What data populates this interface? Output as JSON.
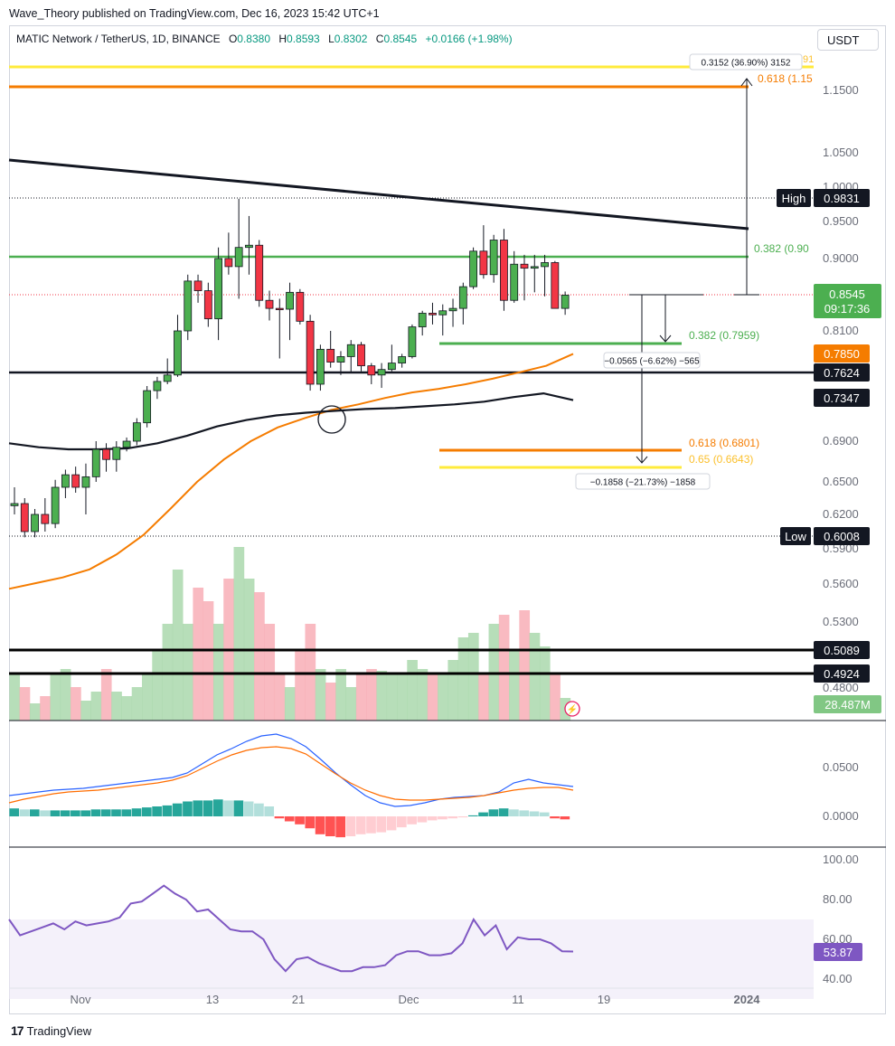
{
  "publisher": "Wave_Theory published on TradingView.com, Dec 16, 2023 15:42 UTC+1",
  "header": {
    "symbol": "MATIC Network / TetherUS, 1D, BINANCE",
    "o_key": "O",
    "o_val": "0.8380",
    "h_key": "H",
    "h_val": "0.8593",
    "l_key": "L",
    "l_val": "0.8302",
    "c_key": "C",
    "c_val": "0.8545",
    "change": "+0.0166 (+1.98%)",
    "currency": "USDT"
  },
  "footer": {
    "logo_mark": "17",
    "logo_text": "TradingView"
  },
  "colors": {
    "up": "#4caf50",
    "down": "#f23645",
    "green_line": "#4caf50",
    "orange": "#f57c00",
    "yellow": "#ffeb3b",
    "macd": "#2962ff",
    "signal": "#ff6d00",
    "rsi": "#7e57c2"
  },
  "chart_data": [
    {
      "type": "candlestick",
      "y_axis_ticks": [
        "1.1500",
        "1.0500",
        "1.0000",
        "0.9500",
        "0.9000",
        "0.8100",
        "0.6900",
        "0.6500",
        "0.6200",
        "0.5900",
        "0.5600",
        "0.5300",
        "0.4800"
      ],
      "x_axis_ticks": [
        "Nov",
        "13",
        "21",
        "Dec",
        "11",
        "19",
        "2024"
      ],
      "labels": {
        "high": "High",
        "high_value": "0.9831",
        "low": "Low",
        "low_value": "0.6008",
        "last_price": "0.8545",
        "countdown": "09:17:36",
        "ma50": "0.7850",
        "hline1": "0.7624",
        "ma200": "0.7347",
        "vline1": "0.5089",
        "vline2": "0.4924",
        "volume": "28.487M",
        "fib_618_up": "0.618 (1.15",
        "fib_top_cut": "91",
        "fib_382_up": "0.382 (0.90",
        "fib_382_down": "0.382 (0.7959)",
        "fib_618_down": "0.618 (0.6801)",
        "fib_65_down": "0.65 (0.6643)",
        "measure_up": "0.3152 (36.90%) 3152",
        "measure_small": "−0.0565 (−6.62%) −565",
        "measure_big": "−0.1858 (−21.73%) −1858"
      },
      "ohlc": [
        [
          0.628,
          0.645,
          0.62,
          0.63
        ],
        [
          0.63,
          0.635,
          0.6,
          0.605
        ],
        [
          0.605,
          0.625,
          0.6,
          0.62
        ],
        [
          0.62,
          0.635,
          0.605,
          0.612
        ],
        [
          0.612,
          0.652,
          0.608,
          0.645
        ],
        [
          0.645,
          0.662,
          0.635,
          0.657
        ],
        [
          0.657,
          0.665,
          0.64,
          0.645
        ],
        [
          0.645,
          0.668,
          0.62,
          0.655
        ],
        [
          0.655,
          0.69,
          0.65,
          0.682
        ],
        [
          0.682,
          0.688,
          0.66,
          0.672
        ],
        [
          0.672,
          0.69,
          0.66,
          0.684
        ],
        [
          0.684,
          0.694,
          0.68,
          0.69
        ],
        [
          0.69,
          0.715,
          0.686,
          0.71
        ],
        [
          0.71,
          0.75,
          0.705,
          0.745
        ],
        [
          0.745,
          0.76,
          0.736,
          0.755
        ],
        [
          0.755,
          0.78,
          0.752,
          0.762
        ],
        [
          0.762,
          0.83,
          0.76,
          0.81
        ],
        [
          0.81,
          0.88,
          0.8,
          0.872
        ],
        [
          0.872,
          0.88,
          0.845,
          0.86
        ],
        [
          0.86,
          0.87,
          0.815,
          0.825
        ],
        [
          0.825,
          0.915,
          0.8,
          0.9
        ],
        [
          0.9,
          0.935,
          0.88,
          0.89
        ],
        [
          0.89,
          0.983,
          0.85,
          0.915
        ],
        [
          0.915,
          0.958,
          0.88,
          0.918
        ],
        [
          0.918,
          0.925,
          0.84,
          0.848
        ],
        [
          0.848,
          0.86,
          0.823,
          0.838
        ],
        [
          0.838,
          0.85,
          0.78,
          0.837
        ],
        [
          0.837,
          0.87,
          0.8,
          0.858
        ],
        [
          0.858,
          0.862,
          0.818,
          0.822
        ],
        [
          0.822,
          0.83,
          0.745,
          0.752
        ],
        [
          0.752,
          0.795,
          0.745,
          0.79
        ],
        [
          0.79,
          0.81,
          0.77,
          0.776
        ],
        [
          0.776,
          0.788,
          0.762,
          0.782
        ],
        [
          0.782,
          0.8,
          0.765,
          0.795
        ],
        [
          0.795,
          0.798,
          0.766,
          0.772
        ],
        [
          0.772,
          0.775,
          0.752,
          0.762
        ],
        [
          0.762,
          0.775,
          0.748,
          0.768
        ],
        [
          0.768,
          0.795,
          0.766,
          0.775
        ],
        [
          0.775,
          0.785,
          0.77,
          0.782
        ],
        [
          0.782,
          0.818,
          0.78,
          0.815
        ],
        [
          0.815,
          0.835,
          0.805,
          0.832
        ],
        [
          0.832,
          0.845,
          0.818,
          0.83
        ],
        [
          0.83,
          0.843,
          0.805,
          0.835
        ],
        [
          0.835,
          0.85,
          0.815,
          0.838
        ],
        [
          0.838,
          0.87,
          0.818,
          0.865
        ],
        [
          0.865,
          0.915,
          0.862,
          0.91
        ],
        [
          0.91,
          0.945,
          0.875,
          0.88
        ],
        [
          0.88,
          0.932,
          0.87,
          0.925
        ],
        [
          0.925,
          0.94,
          0.835,
          0.848
        ],
        [
          0.848,
          0.91,
          0.845,
          0.893
        ],
        [
          0.893,
          0.905,
          0.848,
          0.888
        ],
        [
          0.888,
          0.905,
          0.858,
          0.89
        ],
        [
          0.89,
          0.905,
          0.853,
          0.895
        ],
        [
          0.895,
          0.897,
          0.84,
          0.838
        ],
        [
          0.838,
          0.859,
          0.83,
          0.8545
        ]
      ],
      "ma50": [
        0.555,
        0.56,
        0.565,
        0.572,
        0.585,
        0.602,
        0.625,
        0.65,
        0.672,
        0.69,
        0.705,
        0.715,
        0.724,
        0.73,
        0.737,
        0.743,
        0.747,
        0.752,
        0.758,
        0.765,
        0.772,
        0.785
      ],
      "ma200": [
        0.688,
        0.684,
        0.682,
        0.682,
        0.683,
        0.688,
        0.696,
        0.706,
        0.713,
        0.718,
        0.721,
        0.723,
        0.725,
        0.726,
        0.728,
        0.73,
        0.733,
        0.738,
        0.742,
        0.7347
      ]
    },
    {
      "type": "bar",
      "name": "MACD",
      "y_axis_ticks": [
        "0.0500",
        "0.0000"
      ],
      "histogram": [
        0.008,
        0.007,
        0.007,
        0.006,
        0.006,
        0.006,
        0.006,
        0.006,
        0.007,
        0.007,
        0.007,
        0.007,
        0.008,
        0.009,
        0.01,
        0.011,
        0.013,
        0.015,
        0.016,
        0.016,
        0.017,
        0.016,
        0.016,
        0.015,
        0.013,
        0.01,
        -0.002,
        -0.005,
        -0.008,
        -0.012,
        -0.018,
        -0.02,
        -0.021,
        -0.02,
        -0.018,
        -0.017,
        -0.016,
        -0.014,
        -0.011,
        -0.008,
        -0.006,
        -0.004,
        -0.003,
        -0.002,
        -0.001,
        0.001,
        0.004,
        0.007,
        0.008,
        0.007,
        0.006,
        0.005,
        0.004,
        -0.002,
        -0.003
      ]
    },
    {
      "type": "line",
      "name": "RSI",
      "y_axis_ticks": [
        "100.00",
        "80.00",
        "60.00",
        "40.00"
      ],
      "last": "53.87",
      "values": [
        70,
        62,
        64,
        66,
        68,
        65,
        69,
        67,
        68,
        69,
        71,
        78,
        79,
        83,
        87,
        83,
        80,
        74,
        75,
        70,
        65,
        64,
        64,
        60,
        50,
        44,
        50,
        51,
        48,
        46,
        44,
        44,
        46,
        46,
        47,
        52,
        54,
        54,
        52,
        52,
        53,
        58,
        70,
        62,
        67,
        55,
        61,
        60,
        60,
        58,
        54,
        53.87
      ]
    }
  ]
}
